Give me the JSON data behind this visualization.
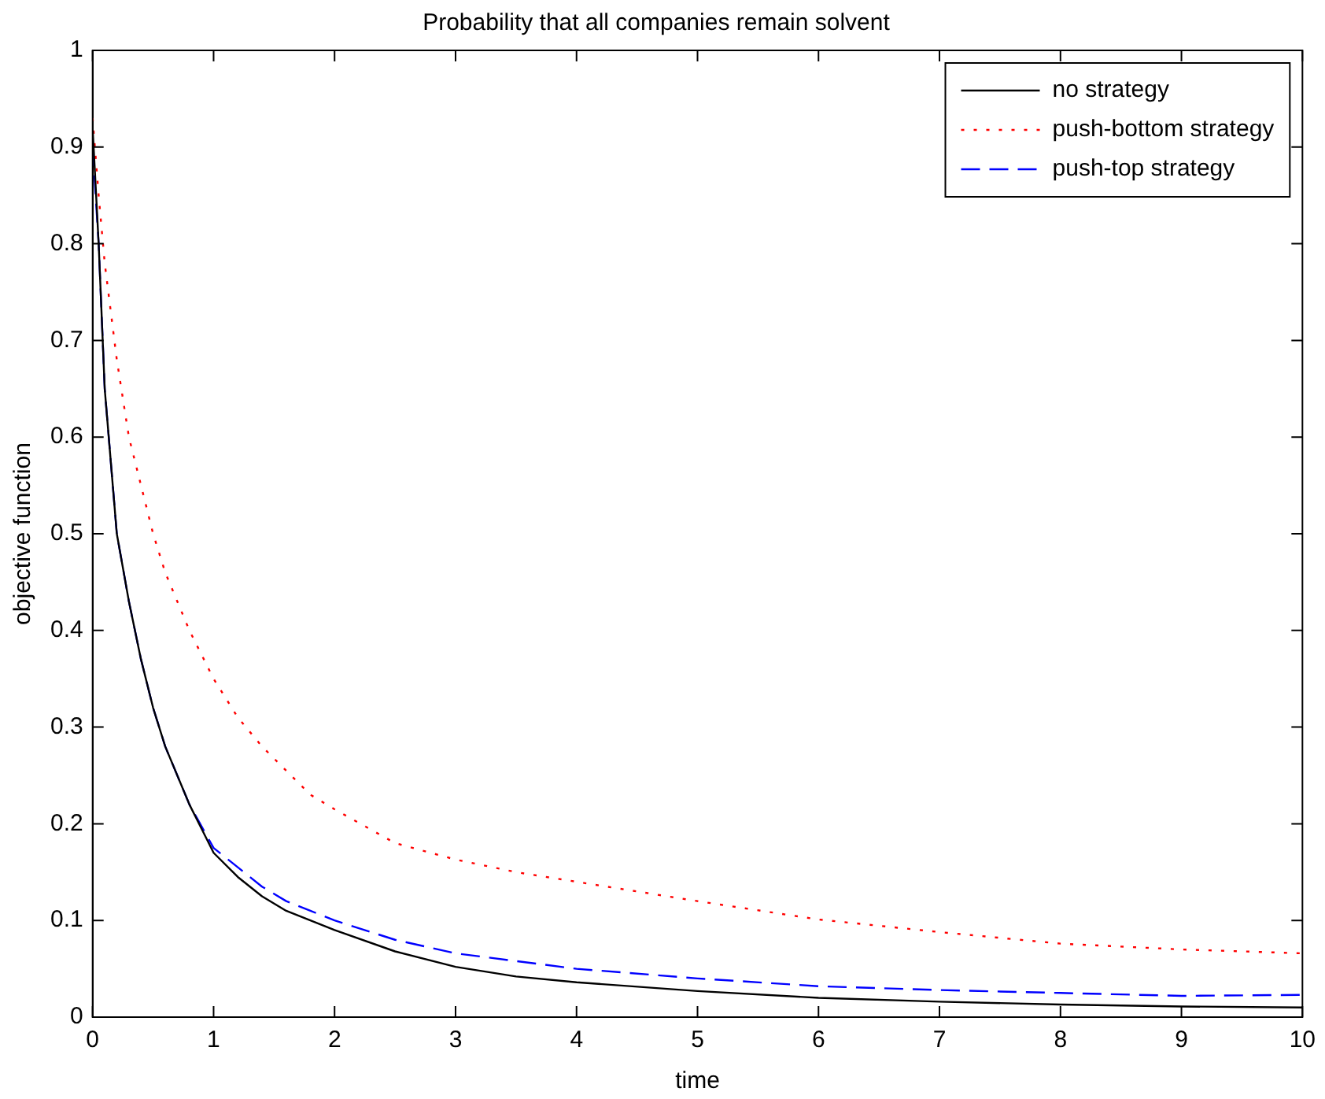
{
  "chart_data": {
    "type": "line",
    "title": "Probability that all companies remain solvent",
    "xlabel": "time",
    "ylabel": "objective function",
    "x": [
      0,
      0.05,
      0.1,
      0.2,
      0.3,
      0.4,
      0.5,
      0.6,
      0.8,
      1,
      1.2,
      1.4,
      1.6,
      1.8,
      2,
      2.5,
      3,
      3.5,
      4,
      5,
      6,
      7,
      8,
      9,
      10
    ],
    "series": [
      {
        "name": "no strategy",
        "color": "#000000",
        "line_style": "solid",
        "values": [
          0.92,
          0.8,
          0.65,
          0.5,
          0.43,
          0.37,
          0.32,
          0.28,
          0.22,
          0.17,
          0.145,
          0.125,
          0.11,
          0.1,
          0.09,
          0.068,
          0.052,
          0.042,
          0.036,
          0.027,
          0.02,
          0.016,
          0.013,
          0.011,
          0.01
        ]
      },
      {
        "name": "push-bottom strategy",
        "color": "#ff0000",
        "line_style": "dotted",
        "values": [
          0.93,
          0.85,
          0.78,
          0.68,
          0.6,
          0.55,
          0.5,
          0.46,
          0.4,
          0.35,
          0.31,
          0.28,
          0.255,
          0.23,
          0.215,
          0.18,
          0.163,
          0.15,
          0.14,
          0.12,
          0.101,
          0.088,
          0.076,
          0.07,
          0.066
        ]
      },
      {
        "name": "push-top strategy",
        "color": "#0000ff",
        "line_style": "dashed",
        "values": [
          0.9,
          0.8,
          0.65,
          0.5,
          0.43,
          0.37,
          0.32,
          0.28,
          0.22,
          0.175,
          0.155,
          0.135,
          0.12,
          0.11,
          0.1,
          0.08,
          0.066,
          0.058,
          0.05,
          0.04,
          0.032,
          0.028,
          0.025,
          0.022,
          0.023
        ]
      }
    ],
    "xlim": [
      0,
      10
    ],
    "xticks": [
      0,
      1,
      2,
      3,
      4,
      5,
      6,
      7,
      8,
      9,
      10
    ],
    "ylim": [
      0,
      1
    ],
    "yticks": [
      0,
      0.1,
      0.2,
      0.3,
      0.4,
      0.5,
      0.6,
      0.7,
      0.8,
      0.9,
      1
    ],
    "grid": false,
    "legend": "top right",
    "marker": "none"
  }
}
